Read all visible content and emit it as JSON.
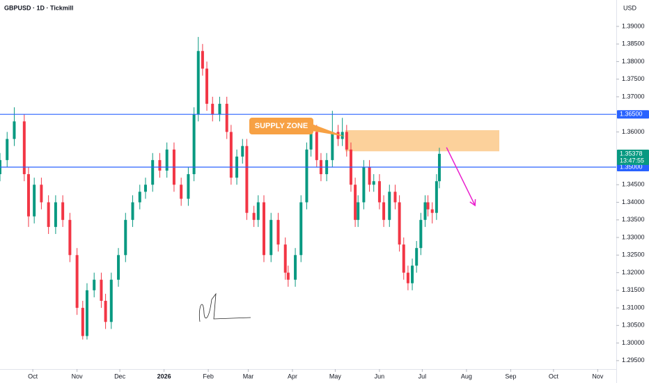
{
  "chart_data": {
    "type": "candlestick",
    "title": "GBPUSD · 1D · Tickmill",
    "currency": "USD",
    "up_color": "#089981",
    "down_color": "#f23645",
    "x": [
      0,
      5,
      10,
      17,
      20,
      24,
      29,
      34,
      39,
      44,
      49,
      54,
      58,
      61,
      66,
      71,
      74,
      78,
      83,
      88,
      93,
      98,
      102,
      107,
      112,
      117,
      122,
      127,
      132,
      136,
      139,
      142,
      145,
      149,
      154,
      159,
      162,
      166,
      170,
      173,
      178,
      181,
      185,
      190,
      195,
      200,
      202,
      207,
      211,
      215,
      218,
      222,
      225,
      229,
      233,
      237,
      240,
      243,
      246,
      249,
      251,
      255,
      259,
      262,
      266,
      269,
      273,
      277,
      280,
      283,
      286,
      289,
      292,
      295,
      298,
      300,
      303,
      306,
      308
    ],
    "open": [
      1.348,
      1.352,
      1.358,
      1.363,
      1.348,
      1.336,
      1.345,
      1.34,
      1.333,
      1.34,
      1.335,
      1.325,
      1.31,
      1.302,
      1.315,
      1.318,
      1.312,
      1.306,
      1.318,
      1.325,
      1.335,
      1.34,
      1.343,
      1.345,
      1.352,
      1.349,
      1.355,
      1.345,
      1.341,
      1.348,
      1.365,
      1.383,
      1.378,
      1.368,
      1.365,
      1.368,
      1.36,
      1.347,
      1.353,
      1.356,
      1.337,
      1.335,
      1.34,
      1.325,
      1.335,
      1.328,
      1.32,
      1.318,
      1.325,
      1.34,
      1.355,
      1.36,
      1.352,
      1.348,
      1.352,
      1.36,
      1.358,
      1.36,
      1.355,
      1.345,
      1.335,
      1.34,
      1.35,
      1.345,
      1.346,
      1.34,
      1.335,
      1.343,
      1.34,
      1.328,
      1.32,
      1.317,
      1.322,
      1.327,
      1.335,
      1.34,
      1.338,
      1.337,
      1.346
    ],
    "high": [
      1.354,
      1.36,
      1.367,
      1.365,
      1.35,
      1.347,
      1.347,
      1.342,
      1.342,
      1.342,
      1.337,
      1.327,
      1.312,
      1.317,
      1.32,
      1.32,
      1.314,
      1.32,
      1.327,
      1.337,
      1.342,
      1.345,
      1.347,
      1.354,
      1.354,
      1.357,
      1.357,
      1.347,
      1.35,
      1.367,
      1.387,
      1.385,
      1.38,
      1.37,
      1.37,
      1.37,
      1.362,
      1.355,
      1.358,
      1.358,
      1.339,
      1.342,
      1.342,
      1.337,
      1.337,
      1.33,
      1.322,
      1.327,
      1.342,
      1.357,
      1.362,
      1.362,
      1.354,
      1.354,
      1.366,
      1.362,
      1.364,
      1.362,
      1.357,
      1.347,
      1.342,
      1.352,
      1.352,
      1.348,
      1.348,
      1.342,
      1.345,
      1.345,
      1.342,
      1.33,
      1.322,
      1.324,
      1.329,
      1.337,
      1.342,
      1.342,
      1.34,
      1.348,
      1.3555
    ],
    "low": [
      1.346,
      1.35,
      1.356,
      1.346,
      1.333,
      1.334,
      1.338,
      1.331,
      1.331,
      1.333,
      1.323,
      1.308,
      1.301,
      1.301,
      1.313,
      1.31,
      1.304,
      1.304,
      1.316,
      1.323,
      1.333,
      1.338,
      1.341,
      1.343,
      1.347,
      1.347,
      1.343,
      1.339,
      1.339,
      1.346,
      1.363,
      1.376,
      1.366,
      1.363,
      1.363,
      1.358,
      1.345,
      1.345,
      1.351,
      1.335,
      1.333,
      1.333,
      1.323,
      1.323,
      1.326,
      1.318,
      1.316,
      1.316,
      1.323,
      1.338,
      1.353,
      1.35,
      1.346,
      1.346,
      1.35,
      1.356,
      1.356,
      1.353,
      1.343,
      1.333,
      1.333,
      1.338,
      1.343,
      1.343,
      1.338,
      1.333,
      1.333,
      1.338,
      1.326,
      1.318,
      1.315,
      1.315,
      1.32,
      1.325,
      1.333,
      1.336,
      1.334,
      1.335,
      1.344
    ],
    "close": [
      1.352,
      1.358,
      1.363,
      1.348,
      1.336,
      1.345,
      1.34,
      1.333,
      1.34,
      1.335,
      1.325,
      1.31,
      1.302,
      1.315,
      1.318,
      1.312,
      1.306,
      1.318,
      1.325,
      1.335,
      1.34,
      1.343,
      1.345,
      1.352,
      1.349,
      1.355,
      1.345,
      1.341,
      1.348,
      1.365,
      1.383,
      1.378,
      1.368,
      1.365,
      1.368,
      1.36,
      1.347,
      1.353,
      1.356,
      1.337,
      1.335,
      1.34,
      1.325,
      1.335,
      1.328,
      1.32,
      1.318,
      1.325,
      1.34,
      1.355,
      1.36,
      1.352,
      1.348,
      1.352,
      1.36,
      1.358,
      1.36,
      1.355,
      1.345,
      1.335,
      1.34,
      1.35,
      1.345,
      1.346,
      1.34,
      1.335,
      1.343,
      1.34,
      1.328,
      1.32,
      1.317,
      1.322,
      1.327,
      1.335,
      1.34,
      1.338,
      1.337,
      1.346,
      1.35378
    ],
    "xlim": [
      0,
      432
    ],
    "xticks": [
      {
        "value": 23,
        "label": "Oct"
      },
      {
        "value": 54,
        "label": "Nov"
      },
      {
        "value": 84,
        "label": "Dec"
      },
      {
        "value": 115,
        "label": "2026"
      },
      {
        "value": 146,
        "label": "Feb"
      },
      {
        "value": 174,
        "label": "Mar"
      },
      {
        "value": 205,
        "label": "Apr"
      },
      {
        "value": 235,
        "label": "May"
      },
      {
        "value": 266,
        "label": "Jun"
      },
      {
        "value": 296,
        "label": "Jul"
      },
      {
        "value": 327,
        "label": "Aug"
      },
      {
        "value": 358,
        "label": "Sep"
      },
      {
        "value": 388,
        "label": "Oct"
      },
      {
        "value": 419,
        "label": "Nov"
      }
    ],
    "ylim": [
      1.2926,
      1.3975
    ],
    "yticks": [
      {
        "value": 1.39,
        "label": "1.39000"
      },
      {
        "value": 1.385,
        "label": "1.38500"
      },
      {
        "value": 1.38,
        "label": "1.38000"
      },
      {
        "value": 1.375,
        "label": "1.37500"
      },
      {
        "value": 1.37,
        "label": "1.37000"
      },
      {
        "value": 1.36,
        "label": "1.36000"
      },
      {
        "value": 1.345,
        "label": "1.34500"
      },
      {
        "value": 1.34,
        "label": "1.34000"
      },
      {
        "value": 1.335,
        "label": "1.33500"
      },
      {
        "value": 1.33,
        "label": "1.33000"
      },
      {
        "value": 1.325,
        "label": "1.32500"
      },
      {
        "value": 1.32,
        "label": "1.32000"
      },
      {
        "value": 1.315,
        "label": "1.31500"
      },
      {
        "value": 1.31,
        "label": "1.31000"
      },
      {
        "value": 1.305,
        "label": "1.30500"
      },
      {
        "value": 1.3,
        "label": "1.30000"
      },
      {
        "value": 1.295,
        "label": "1.29500"
      }
    ],
    "price_lines": [
      {
        "value": 1.365,
        "label": "1.36500",
        "color": "#2962ff"
      },
      {
        "value": 1.35,
        "label": "1.35000",
        "color": "#2962ff"
      }
    ],
    "last_price": {
      "value": 1.35378,
      "label": "1.35378",
      "countdown": "13:47:55",
      "color": "#089981"
    },
    "supply_zone": {
      "label": "SUPPLY ZONE",
      "low": 1.3545,
      "high": 1.3605,
      "x": [
        242,
        350
      ],
      "color": "#fcc989",
      "label_color": "#f7a144"
    },
    "arrow": {
      "x": [
        313,
        333
      ],
      "y": [
        1.3556,
        1.3391
      ],
      "color": "#e91ecd"
    }
  }
}
